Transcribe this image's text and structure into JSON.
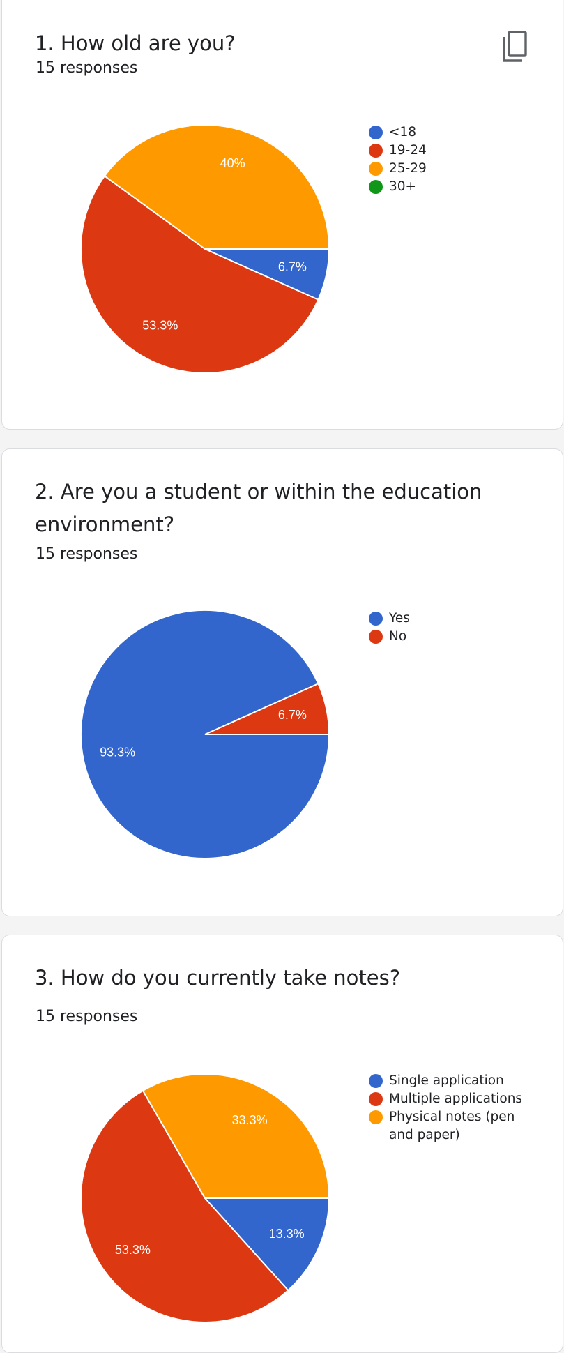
{
  "questions": [
    {
      "title": "1. How old are you?",
      "responses": "15 responses"
    },
    {
      "title": "2. Are you a student or within the education environment?",
      "responses": "15 responses"
    },
    {
      "title": "3. How do you currently take notes?",
      "responses": "15 responses"
    }
  ],
  "icons": {
    "copy": "copy-icon"
  },
  "chart_data": [
    {
      "type": "pie",
      "categories": [
        "<18",
        "19-24",
        "25-29",
        "30+"
      ],
      "values": [
        6.7,
        53.3,
        40,
        0
      ],
      "labels": [
        "6.7%",
        "53.3%",
        "40%",
        ""
      ],
      "colors": [
        "#3366cc",
        "#dc3912",
        "#ff9900",
        "#109618"
      ],
      "legend": "right"
    },
    {
      "type": "pie",
      "categories": [
        "Yes",
        "No"
      ],
      "values": [
        93.3,
        6.7
      ],
      "labels": [
        "93.3%",
        "6.7%"
      ],
      "colors": [
        "#3366cc",
        "#dc3912"
      ],
      "legend": "right"
    },
    {
      "type": "pie",
      "categories": [
        "Single application",
        "Multiple applications",
        "Physical notes (pen and paper)"
      ],
      "values": [
        13.3,
        53.3,
        33.3
      ],
      "labels": [
        "13.3%",
        "53.3%",
        "33.3%"
      ],
      "colors": [
        "#3366cc",
        "#dc3912",
        "#ff9900"
      ],
      "legend": "right"
    }
  ]
}
